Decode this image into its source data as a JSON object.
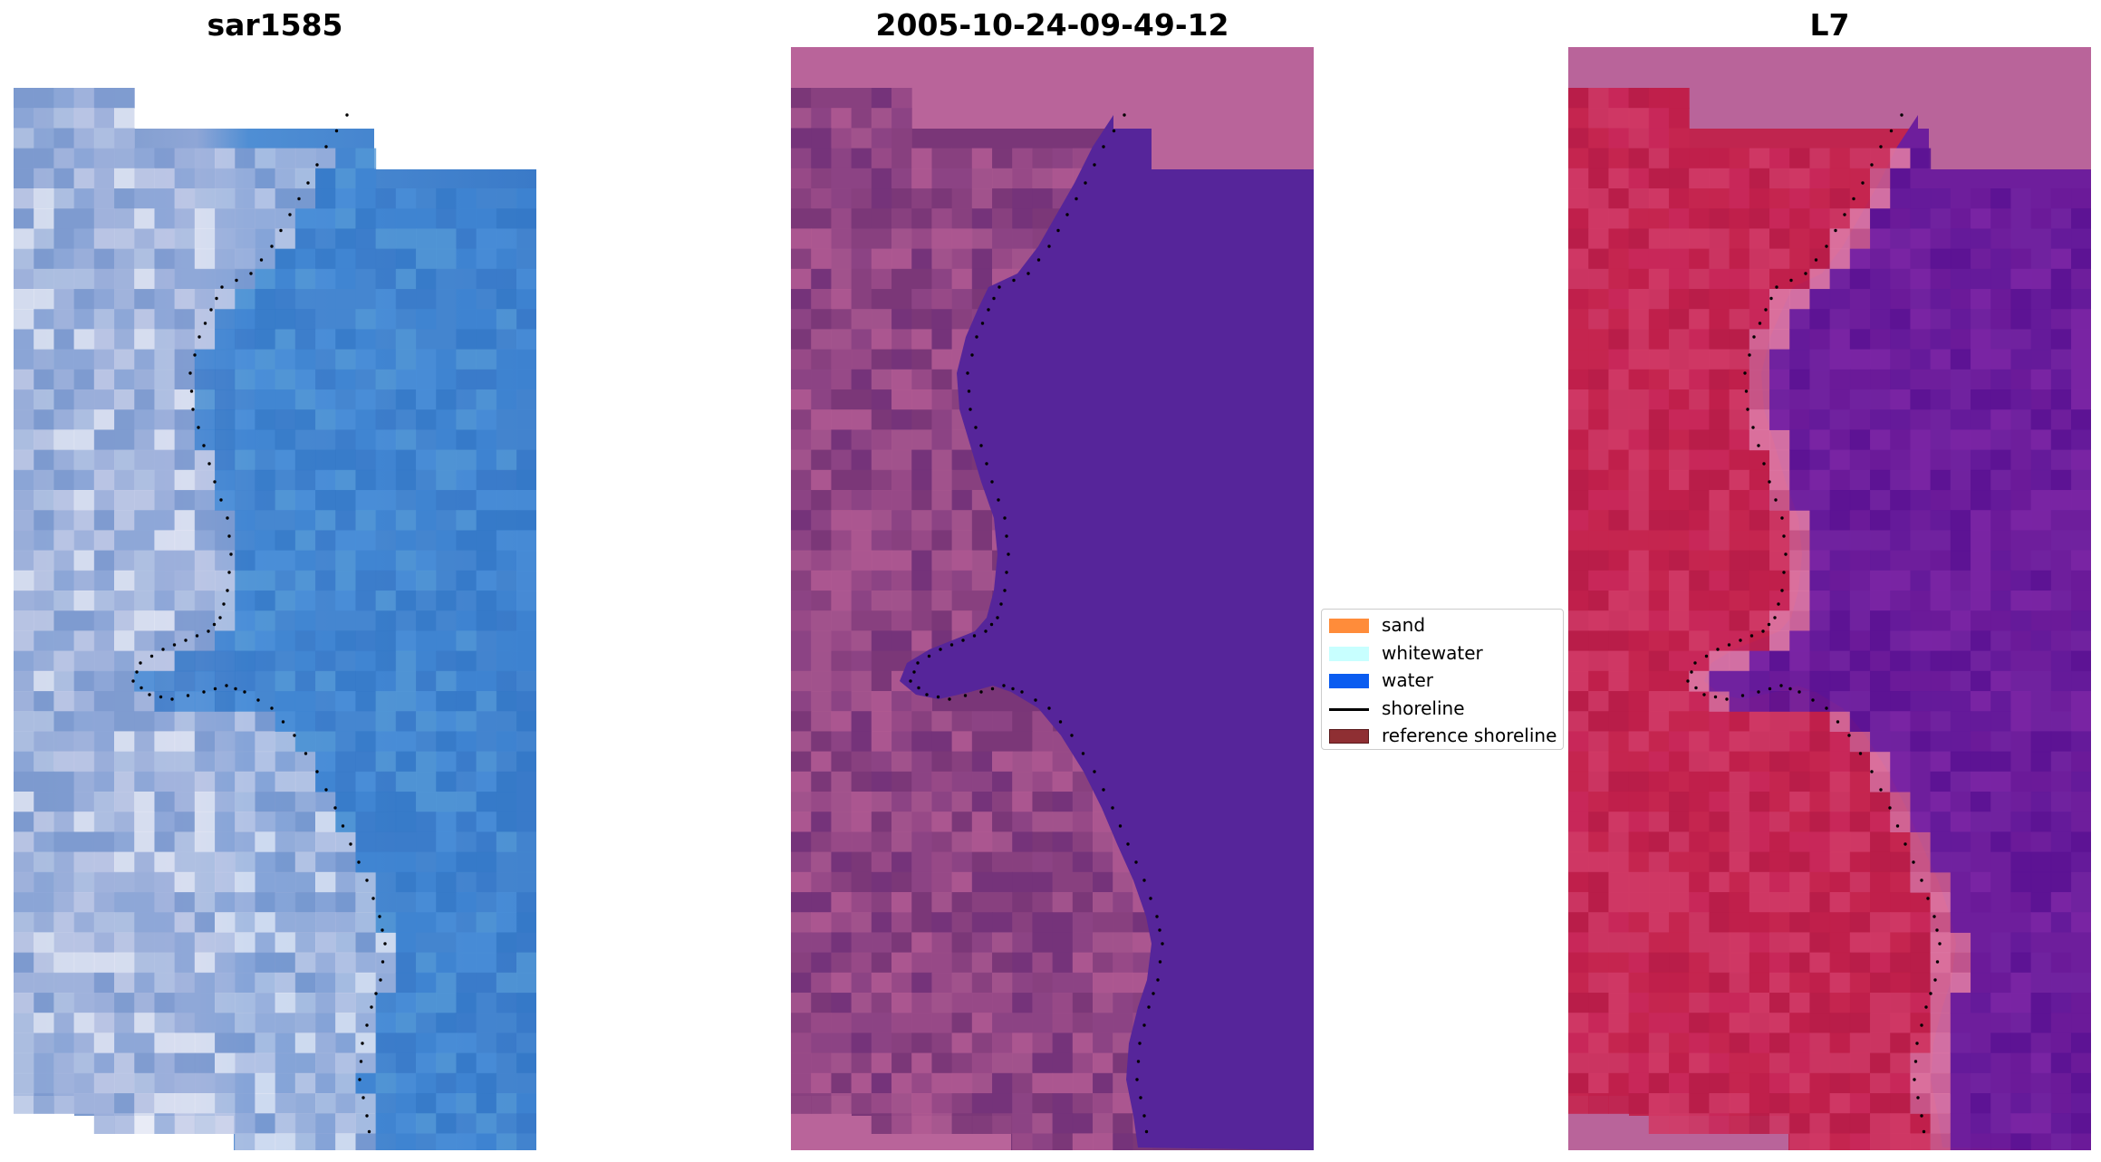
{
  "panels": [
    {
      "title": "sar1585",
      "image": "RGB satellite tile of coastline: pale sand/whitewater on the left, blue water on the right"
    },
    {
      "title": "2005-10-24-09-49-12",
      "image": "Classification overlay: purple/pink land with solid indigo water region"
    },
    {
      "title": "L7",
      "image": "False-colour index image: crimson land on the left, purple water on the right"
    }
  ],
  "legend": {
    "items": [
      {
        "label": "sand",
        "color": "#ff8c3a",
        "kind": "patch"
      },
      {
        "label": "whitewater",
        "color": "#c8ffff",
        "kind": "patch"
      },
      {
        "label": "water",
        "color": "#0a5cf0",
        "kind": "patch"
      },
      {
        "label": "shoreline",
        "color": "#000000",
        "kind": "line"
      },
      {
        "label": "reference shoreline",
        "color": "#8f2f33",
        "kind": "patch"
      }
    ]
  },
  "colors": {
    "nodata": "#b9649a",
    "class_water": "#56259a",
    "shoreline_dots": "#000000"
  }
}
